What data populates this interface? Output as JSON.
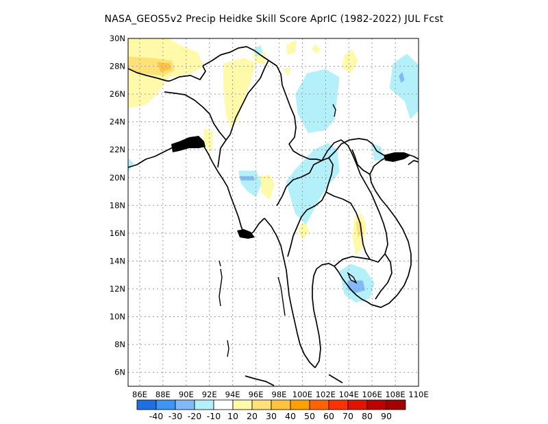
{
  "title": "NASA_GEOS5v2 Precip Heidke Skill Score AprIC (1982-2022) JUL Fcst",
  "map": {
    "lon_range": [
      85,
      110
    ],
    "lat_range": [
      5,
      30
    ],
    "lat_ticks": [
      {
        "v": 30,
        "label": "30N"
      },
      {
        "v": 28,
        "label": "28N"
      },
      {
        "v": 26,
        "label": "26N"
      },
      {
        "v": 24,
        "label": "24N"
      },
      {
        "v": 22,
        "label": "22N"
      },
      {
        "v": 20,
        "label": "20N"
      },
      {
        "v": 18,
        "label": "18N"
      },
      {
        "v": 16,
        "label": "16N"
      },
      {
        "v": 14,
        "label": "14N"
      },
      {
        "v": 12,
        "label": "12N"
      },
      {
        "v": 10,
        "label": "10N"
      },
      {
        "v": 8,
        "label": "8N"
      },
      {
        "v": 6,
        "label": "6N"
      }
    ],
    "lon_ticks": [
      {
        "v": 86,
        "label": "86E"
      },
      {
        "v": 88,
        "label": "88E"
      },
      {
        "v": 90,
        "label": "90E"
      },
      {
        "v": 92,
        "label": "92E"
      },
      {
        "v": 94,
        "label": "94E"
      },
      {
        "v": 96,
        "label": "96E"
      },
      {
        "v": 98,
        "label": "98E"
      },
      {
        "v": 100,
        "label": "100E"
      },
      {
        "v": 102,
        "label": "102E"
      },
      {
        "v": 104,
        "label": "104E"
      },
      {
        "v": 106,
        "label": "106E"
      },
      {
        "v": 108,
        "label": "108E"
      },
      {
        "v": 110,
        "label": "110E"
      }
    ],
    "grid": true
  },
  "colorbar": {
    "colors": [
      "#1e6ee6",
      "#3c96f5",
      "#82b9f9",
      "#b4f0fa",
      "#ffffff",
      "#fffaaa",
      "#ffe178",
      "#ffc33c",
      "#ffa000",
      "#ff6400",
      "#ff3200",
      "#e11400",
      "#c00000",
      "#a50000"
    ],
    "labels": [
      "-40",
      "-30",
      "-20",
      "-10",
      "10",
      "20",
      "30",
      "40",
      "50",
      "60",
      "70",
      "80",
      "90"
    ]
  },
  "regions": [
    {
      "level": "10-20",
      "color": "#fffaaa",
      "pts": [
        [
          85,
          30
        ],
        [
          88.5,
          30
        ],
        [
          89.5,
          29.5
        ],
        [
          91,
          29
        ],
        [
          91.5,
          28
        ],
        [
          90.5,
          27.5
        ],
        [
          88.5,
          27.2
        ],
        [
          87.5,
          26
        ],
        [
          86.5,
          25.2
        ],
        [
          85,
          25
        ]
      ]
    },
    {
      "level": "20-30",
      "color": "#ffe178",
      "pts": [
        [
          85,
          28.7
        ],
        [
          87,
          28.6
        ],
        [
          88.8,
          28.4
        ],
        [
          89,
          27.7
        ],
        [
          88,
          27.3
        ],
        [
          86,
          27.5
        ],
        [
          85,
          27.8
        ]
      ]
    },
    {
      "level": "30-40",
      "color": "#ffc33c",
      "pts": [
        [
          87.5,
          28.3
        ],
        [
          88.6,
          28.2
        ],
        [
          88.7,
          27.8
        ],
        [
          87.8,
          27.6
        ]
      ]
    },
    {
      "level": "10-20",
      "color": "#fffaaa",
      "pts": [
        [
          93.2,
          28.2
        ],
        [
          95,
          28.6
        ],
        [
          96,
          28.2
        ],
        [
          95.5,
          26.8
        ],
        [
          94.8,
          25.2
        ],
        [
          94.5,
          24.2
        ],
        [
          93.8,
          23.6
        ],
        [
          93.4,
          24.6
        ],
        [
          93.2,
          26.5
        ]
      ]
    },
    {
      "level": "10-20",
      "color": "#fffaaa",
      "pts": [
        [
          91.5,
          23.5
        ],
        [
          92.3,
          23.3
        ],
        [
          92.2,
          21.8
        ],
        [
          91.6,
          22.3
        ]
      ]
    },
    {
      "level": "10-20",
      "color": "#fffaaa",
      "pts": [
        [
          95.7,
          29
        ],
        [
          96.8,
          29
        ],
        [
          96.8,
          28.1
        ],
        [
          95.9,
          28.3
        ]
      ]
    },
    {
      "level": "10-20",
      "color": "#fffaaa",
      "pts": [
        [
          98.6,
          29.5
        ],
        [
          99.5,
          29.9
        ],
        [
          99.4,
          29
        ],
        [
          98.7,
          28.8
        ]
      ]
    },
    {
      "level": "10-20",
      "color": "#fffaaa",
      "pts": [
        [
          98.3,
          27.8
        ],
        [
          99,
          27.9
        ],
        [
          98.8,
          27.3
        ]
      ]
    },
    {
      "level": "10-20",
      "color": "#fffaaa",
      "pts": [
        [
          101.1,
          29.6
        ],
        [
          101.6,
          29.2
        ],
        [
          101.2,
          28.9
        ],
        [
          100.8,
          29.2
        ]
      ]
    },
    {
      "level": "10-20",
      "color": "#fffaaa",
      "pts": [
        [
          103.6,
          28.8
        ],
        [
          104.3,
          29.2
        ],
        [
          104.8,
          28.4
        ],
        [
          104.2,
          27.5
        ],
        [
          103.4,
          27.9
        ]
      ]
    },
    {
      "level": "10-20",
      "color": "#fffaaa",
      "pts": [
        [
          100.2,
          17
        ],
        [
          100.6,
          16.1
        ],
        [
          100,
          15.5
        ],
        [
          99.6,
          16.3
        ]
      ]
    },
    {
      "level": "10-20",
      "color": "#fffaaa",
      "pts": [
        [
          104.5,
          17.2
        ],
        [
          105.1,
          17.4
        ],
        [
          105.5,
          16.6
        ],
        [
          105.2,
          15
        ],
        [
          104.6,
          14.4
        ],
        [
          104.3,
          15.8
        ]
      ]
    },
    {
      "level": "20-30",
      "color": "#ffe178",
      "pts": [
        [
          104.6,
          16.8
        ],
        [
          105.1,
          16.9
        ],
        [
          105.2,
          16
        ],
        [
          104.8,
          15.7
        ]
      ]
    },
    {
      "level": "10-20",
      "color": "#fffaaa",
      "pts": [
        [
          96.3,
          20.1
        ],
        [
          97.2,
          20.2
        ],
        [
          97.6,
          19.5
        ],
        [
          97.2,
          18.4
        ],
        [
          96.5,
          18.9
        ]
      ]
    },
    {
      "level": "-10--20",
      "color": "#b4f0fa",
      "pts": [
        [
          95.7,
          29.2
        ],
        [
          96.4,
          29.5
        ],
        [
          96.6,
          29
        ],
        [
          96.1,
          28.7
        ]
      ]
    },
    {
      "level": "-10--20",
      "color": "#b4f0fa",
      "pts": [
        [
          99.4,
          26
        ],
        [
          100.4,
          27.5
        ],
        [
          102,
          27.8
        ],
        [
          103.2,
          27.2
        ],
        [
          103,
          25.8
        ],
        [
          102.8,
          24.2
        ],
        [
          102,
          23.4
        ],
        [
          100.5,
          23.2
        ],
        [
          99.6,
          24.6
        ]
      ]
    },
    {
      "level": "-10--20",
      "color": "#b4f0fa",
      "pts": [
        [
          94.5,
          20.5
        ],
        [
          96,
          20.5
        ],
        [
          96.5,
          19.6
        ],
        [
          96,
          18.6
        ],
        [
          95.3,
          19
        ],
        [
          94.7,
          19.6
        ]
      ]
    },
    {
      "level": "-10--20",
      "color": "#b4f0fa",
      "pts": [
        [
          99.4,
          20.6
        ],
        [
          101,
          22
        ],
        [
          102.2,
          22.5
        ],
        [
          103,
          22
        ],
        [
          103.2,
          20.4
        ],
        [
          102.3,
          19.5
        ],
        [
          101.5,
          18.5
        ],
        [
          100.3,
          16.6
        ],
        [
          99.4,
          17.4
        ],
        [
          98.9,
          18.8
        ],
        [
          98.6,
          19.7
        ]
      ]
    },
    {
      "level": "-10--20",
      "color": "#b4f0fa",
      "pts": [
        [
          105.9,
          22.5
        ],
        [
          106.8,
          22.2
        ],
        [
          107,
          21.3
        ],
        [
          106.2,
          21.2
        ]
      ]
    },
    {
      "level": "-10--20",
      "color": "#b4f0fa",
      "pts": [
        [
          107.8,
          28.2
        ],
        [
          109,
          28.9
        ],
        [
          110,
          28.1
        ],
        [
          110,
          24.8
        ],
        [
          109.3,
          24.2
        ],
        [
          108.8,
          25.5
        ],
        [
          107.5,
          26.4
        ]
      ]
    },
    {
      "level": "-10--20",
      "color": "#b4f0fa",
      "pts": [
        [
          85,
          21.4
        ],
        [
          85.5,
          21
        ],
        [
          85,
          20.4
        ]
      ]
    },
    {
      "level": "-10--20",
      "color": "#b4f0fa",
      "pts": [
        [
          103.2,
          13.3
        ],
        [
          104.2,
          13.8
        ],
        [
          105.4,
          13.4
        ],
        [
          106.2,
          12.4
        ],
        [
          105.8,
          11.3
        ],
        [
          104.6,
          11
        ],
        [
          103.6,
          11.6
        ]
      ]
    },
    {
      "level": "-20--30",
      "color": "#82b9f9",
      "pts": [
        [
          103.9,
          12.6
        ],
        [
          105.2,
          12.6
        ],
        [
          105.4,
          11.9
        ],
        [
          104.5,
          11.7
        ],
        [
          103.9,
          12
        ]
      ]
    },
    {
      "level": "-20--30",
      "color": "#82b9f9",
      "pts": [
        [
          94.6,
          20.1
        ],
        [
          95.8,
          20.1
        ],
        [
          95.9,
          19.8
        ],
        [
          94.7,
          19.8
        ]
      ]
    },
    {
      "level": "-20--30",
      "color": "#82b9f9",
      "pts": [
        [
          108.3,
          27.3
        ],
        [
          108.6,
          27.6
        ],
        [
          108.8,
          27
        ],
        [
          108.5,
          26.8
        ]
      ]
    }
  ]
}
